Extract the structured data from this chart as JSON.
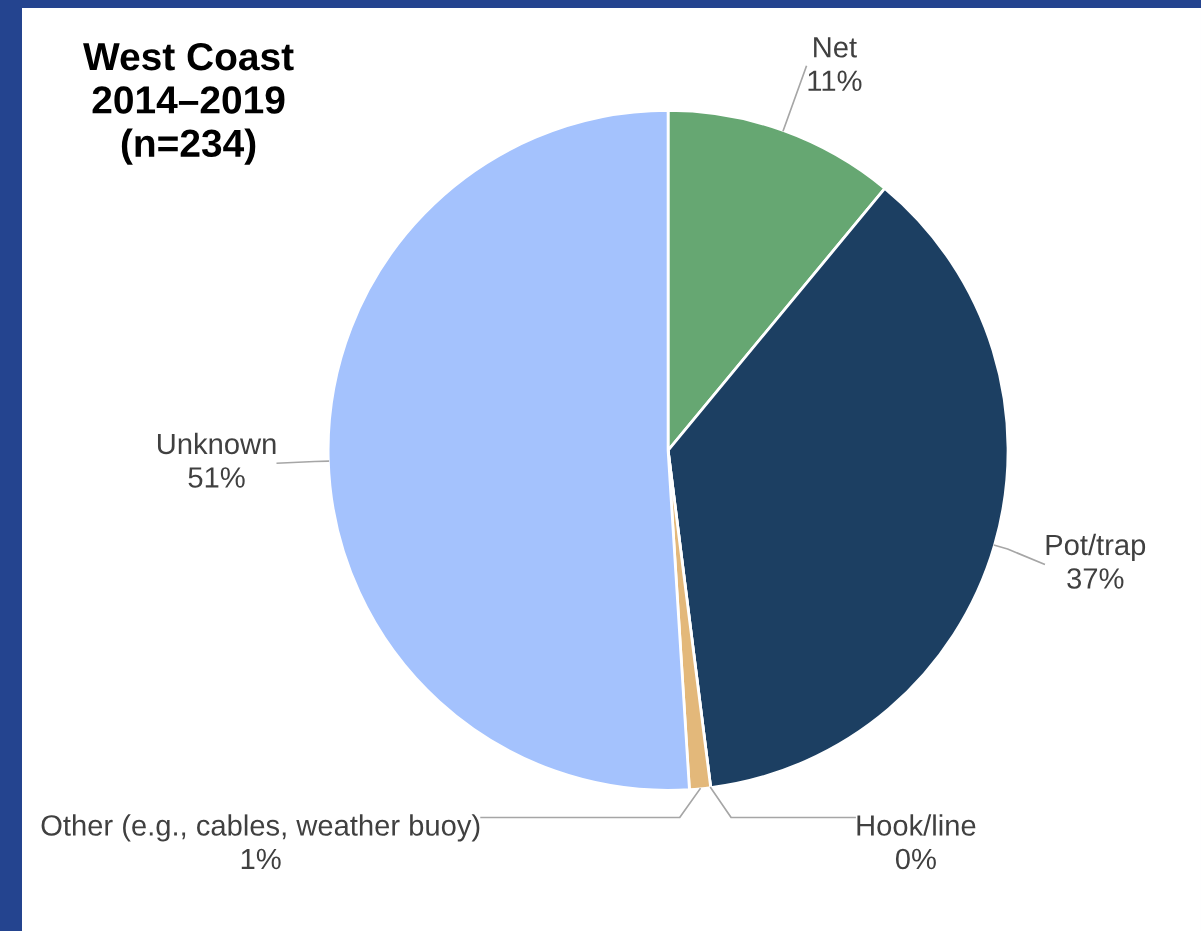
{
  "chart_data": {
    "type": "pie",
    "title": "West Coast\n2014–2019\n(n=234)",
    "categories": [
      "Net",
      "Pot/trap",
      "Hook/line",
      "Other (e.g., cables, weather buoy)",
      "Unknown"
    ],
    "values": [
      11,
      37,
      0,
      1,
      51
    ],
    "value_labels": [
      "11%",
      "37%",
      "0%",
      "1%",
      "51%"
    ],
    "colors": [
      "#66a772",
      "#1c3f62",
      "#b99ee0",
      "#e3b87a",
      "#a4c2fd"
    ],
    "legend": false
  }
}
